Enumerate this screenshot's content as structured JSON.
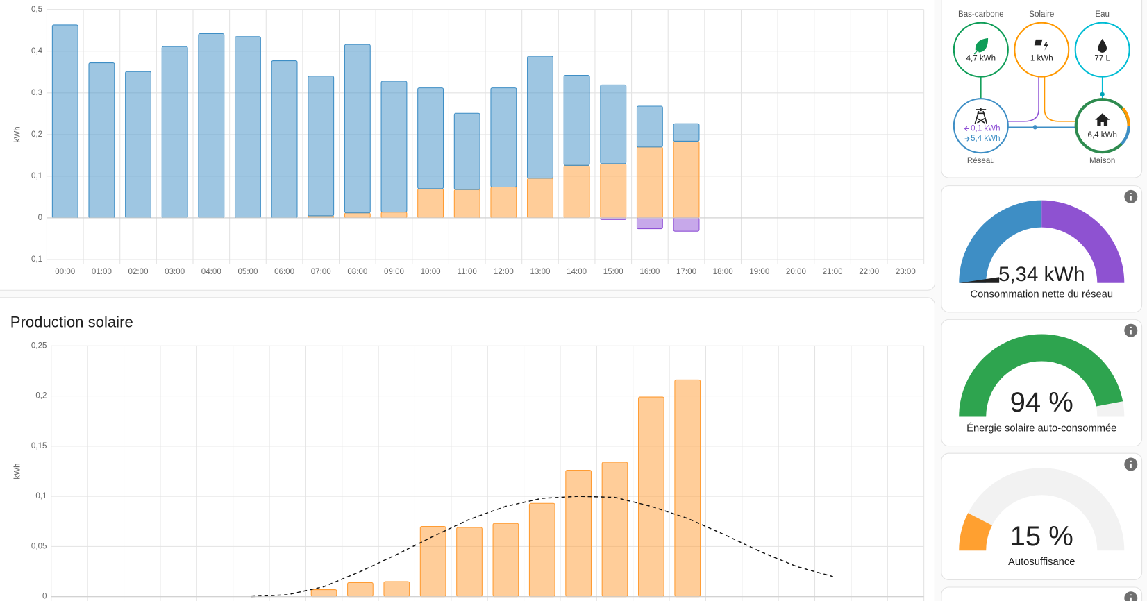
{
  "chart_data": [
    {
      "type": "bar",
      "stacked": true,
      "ylabel": "kWh",
      "categories": [
        "00:00",
        "01:00",
        "02:00",
        "03:00",
        "04:00",
        "05:00",
        "06:00",
        "07:00",
        "08:00",
        "09:00",
        "10:00",
        "11:00",
        "12:00",
        "13:00",
        "14:00",
        "15:00",
        "16:00",
        "17:00",
        "18:00",
        "19:00",
        "20:00",
        "21:00",
        "22:00",
        "23:00"
      ],
      "ylim": [
        -0.1,
        0.5
      ],
      "yticks": [
        {
          "value": 0.5,
          "label": "0,5"
        },
        {
          "value": 0.4,
          "label": "0,4"
        },
        {
          "value": 0.3,
          "label": "0,3"
        },
        {
          "value": 0.2,
          "label": "0,2"
        },
        {
          "value": 0.1,
          "label": "0,1"
        },
        0,
        {
          "value": -0.1,
          "label": "0,1"
        }
      ],
      "grid": true,
      "series": [
        {
          "color": "#ff9c33",
          "values": [
            null,
            null,
            null,
            null,
            null,
            null,
            null,
            0.005,
            0.012,
            0.014,
            0.07,
            0.068,
            0.074,
            0.095,
            0.126,
            0.13,
            0.17,
            0.184,
            null,
            null,
            null,
            null,
            null,
            null
          ]
        },
        {
          "color": "#3e8ec5",
          "values": [
            0.463,
            0.372,
            0.351,
            0.411,
            0.442,
            0.435,
            0.377,
            0.335,
            0.404,
            0.314,
            0.242,
            0.183,
            0.238,
            0.293,
            0.216,
            0.189,
            0.098,
            0.042,
            null,
            null,
            null,
            null,
            null,
            null
          ]
        },
        {
          "color": "#9052d6",
          "values": [
            null,
            null,
            null,
            null,
            null,
            null,
            null,
            null,
            null,
            null,
            null,
            null,
            null,
            null,
            null,
            -0.004,
            -0.026,
            -0.032,
            null,
            null,
            null,
            null,
            null,
            null
          ]
        }
      ]
    },
    {
      "type": "bar",
      "title": "Production solaire",
      "ylabel": "kWh",
      "ylim": [
        0,
        0.25
      ],
      "yticks": [
        0,
        {
          "value": 0.05,
          "label": "0,05"
        },
        {
          "value": 0.1,
          "label": "0,1"
        },
        {
          "value": 0.15,
          "label": "0,15"
        },
        {
          "value": 0.2,
          "label": "0,2"
        },
        {
          "value": 0.25,
          "label": "0,25"
        }
      ],
      "grid": true,
      "series": [
        {
          "color": "#ff9c33",
          "values": [
            0,
            0,
            0,
            0,
            0,
            0,
            0,
            0.007,
            0.014,
            0.015,
            0.07,
            0.069,
            0.073,
            0.093,
            0.126,
            0.134,
            0.199,
            0.216,
            null,
            null,
            null,
            null,
            null,
            null
          ]
        },
        {
          "type": "line",
          "dashed": true,
          "color": "#111111",
          "values": [
            null,
            null,
            null,
            null,
            null,
            0,
            0.002,
            0.01,
            0.025,
            0.042,
            0.06,
            0.077,
            0.09,
            0.098,
            0.1,
            0.099,
            0.09,
            0.078,
            0.062,
            0.045,
            0.03,
            0.02,
            null,
            null
          ]
        }
      ]
    }
  ],
  "energy_distribution": {
    "low_carbon": {
      "label": "Bas-carbone",
      "value": "4,7 kWh"
    },
    "solar": {
      "label": "Solaire",
      "value": "1 kWh"
    },
    "water": {
      "label": "Eau",
      "value": "77 L"
    },
    "grid": {
      "label": "Réseau",
      "returned": "0,1 kWh",
      "consumed": "5,4 kWh"
    },
    "home": {
      "label": "Maison",
      "value": "6,4 kWh"
    }
  },
  "gauges": [
    {
      "value_label": "5,34 kWh",
      "title": "Consommation nette du réseau"
    },
    {
      "value": 94,
      "value_label": "94 %",
      "title": "Énergie solaire auto-consommée",
      "color": "#2ea44f"
    },
    {
      "value": 15,
      "value_label": "15 %",
      "title": "Autosuffisance",
      "color": "#ffa030"
    }
  ]
}
